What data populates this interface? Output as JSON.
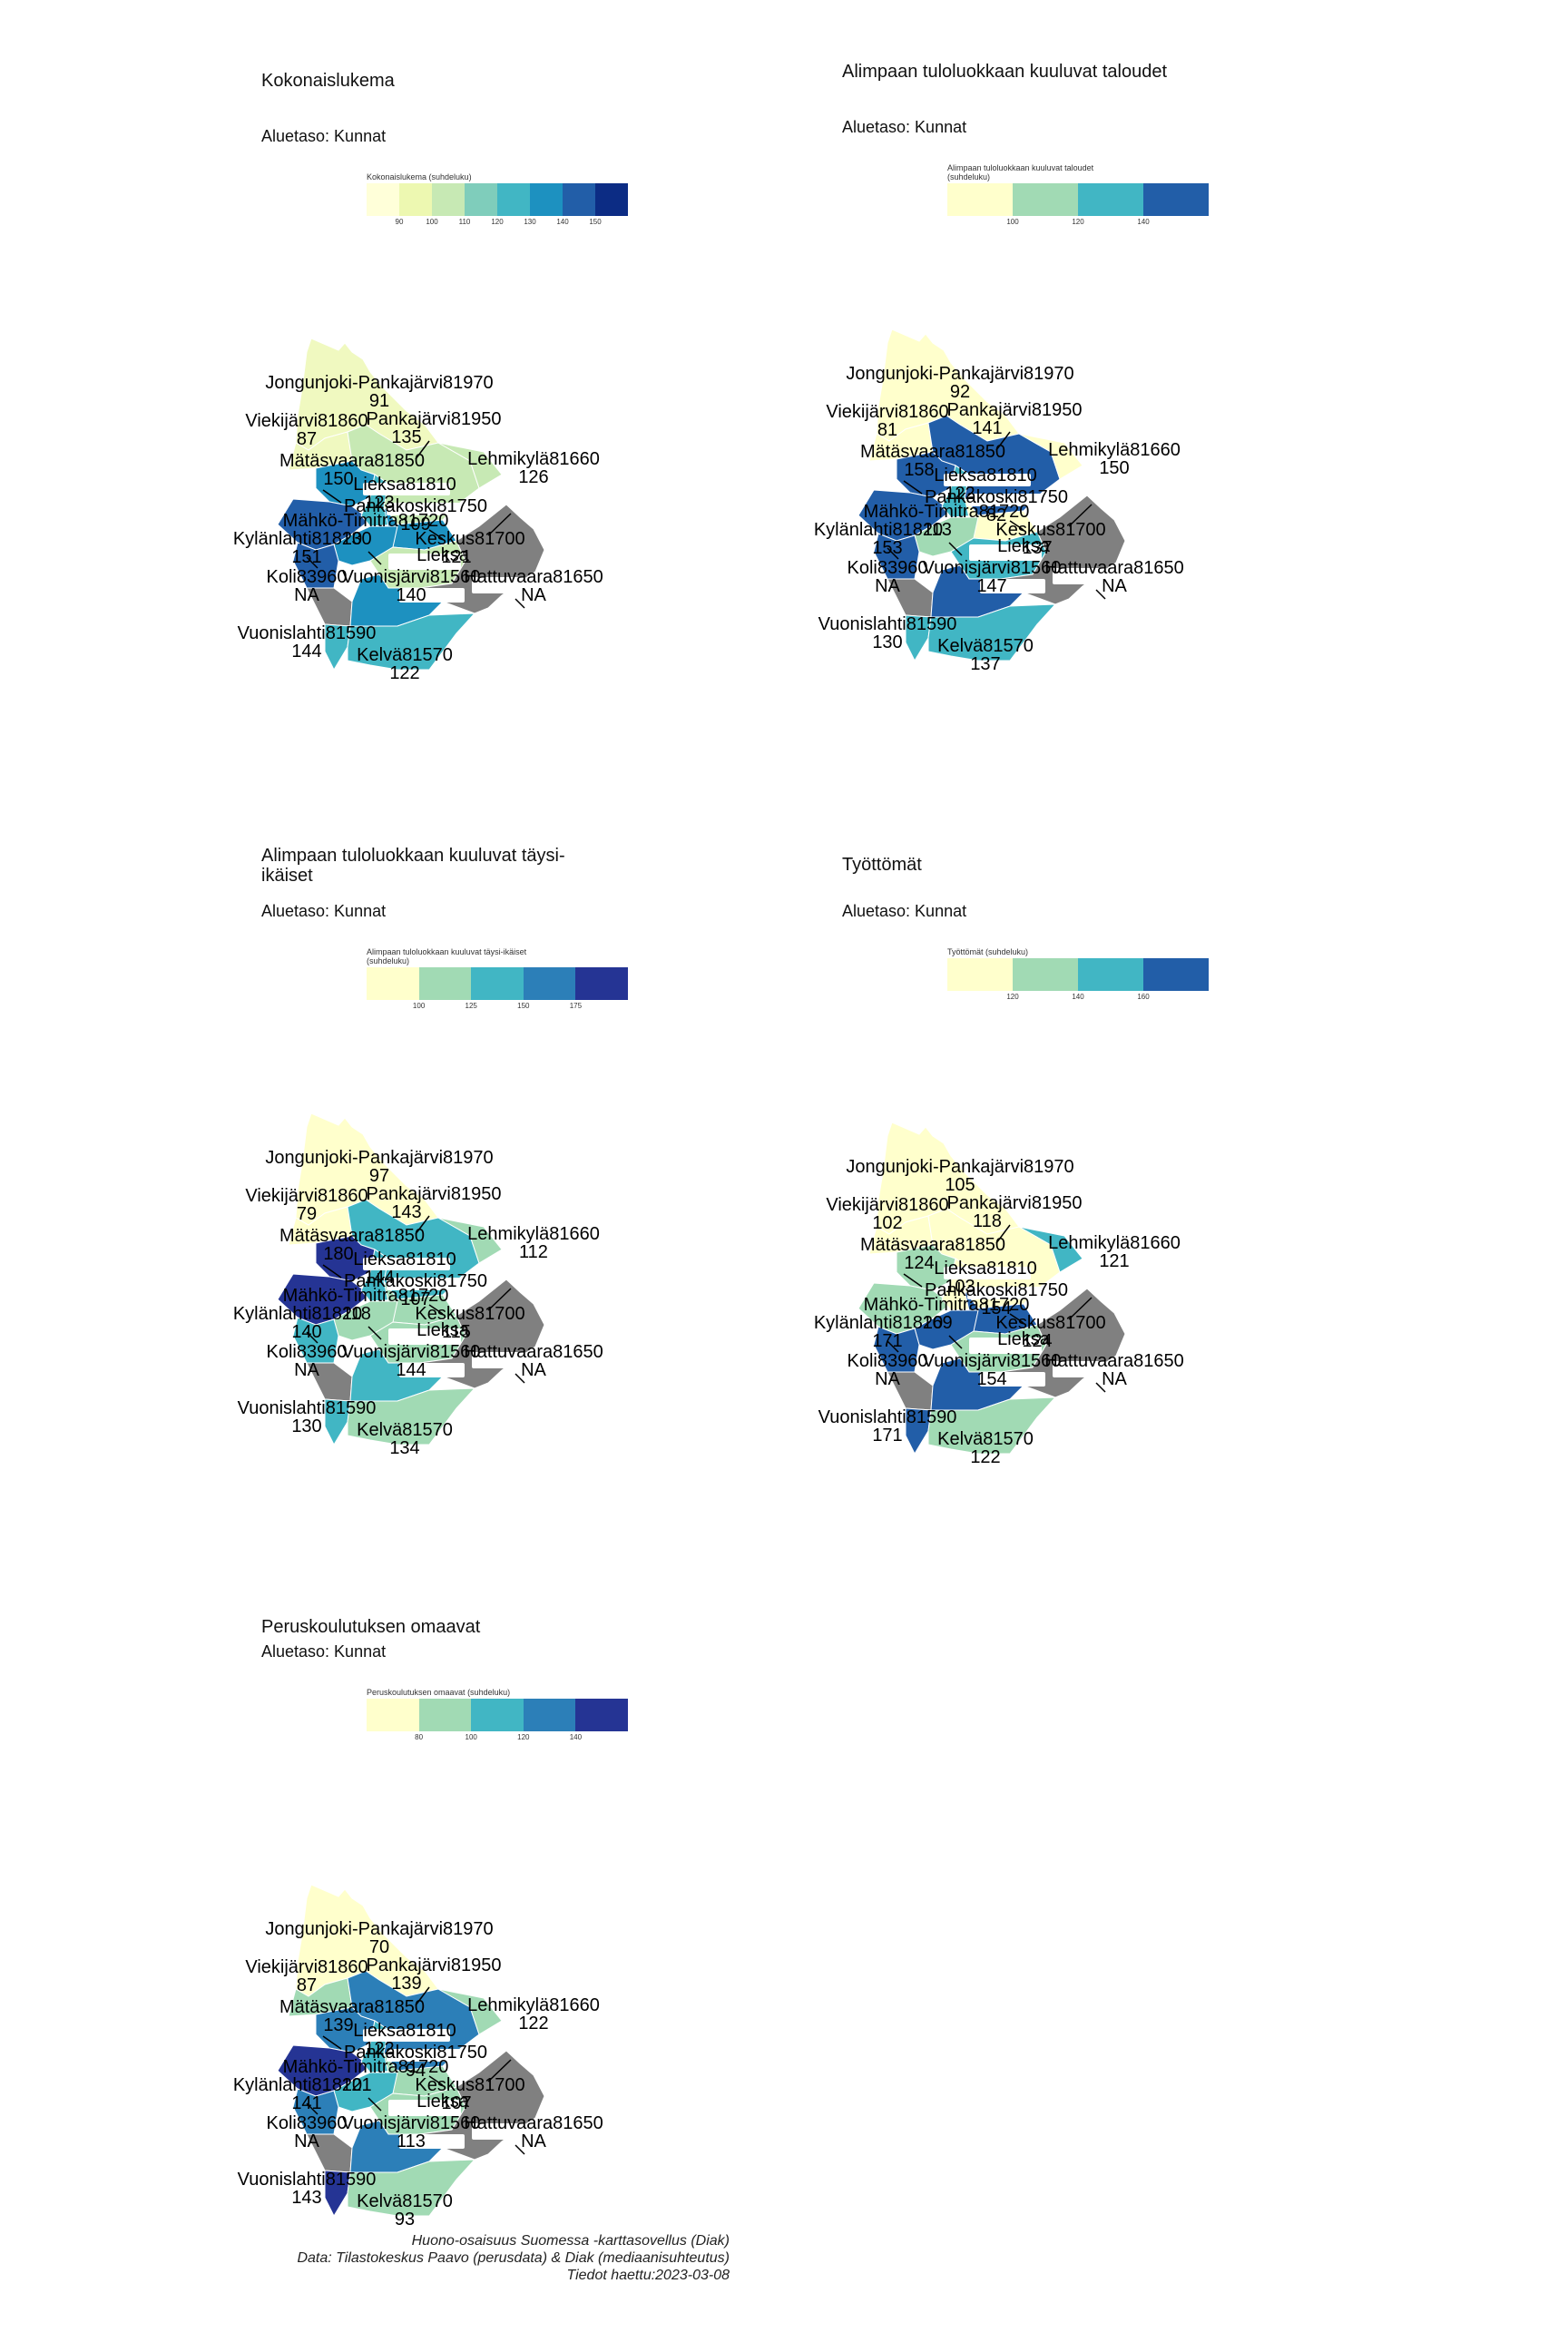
{
  "panels": [
    {
      "title": "Kokonaislukema",
      "subtitle": "Aluetaso: Kunnat",
      "legend_title": "Kokonaislukema (suhdeluku)",
      "legend_colors": [
        "#ffffd9",
        "#edf8b1",
        "#c7e9b4",
        "#7fcdbb",
        "#41b6c4",
        "#1d91c0",
        "#225ea8",
        "#0c2c84"
      ],
      "legend_ticks": [
        "90",
        "100",
        "110",
        "120",
        "130",
        "140",
        "150"
      ],
      "region_colors": {
        "jongunjoki": "#f0f9c0",
        "pankajarvi": "#c7e9b4",
        "viekijarvi": "#f0f9c0",
        "matasvaara": "#1d91c0",
        "west": "#225ea8",
        "lieksa81810": "#41b6c4",
        "lehmikyla": "#c7e9b4",
        "pankakoski": "#1d91c0",
        "mahko": "#1d91c0",
        "kylanlahti": "#225ea8",
        "keskus": "#c7e9b4",
        "vuonisjarvi": "#1d91c0",
        "vuonislahti": "#41b6c4",
        "kelva": "#41b6c4",
        "hattuvaara": "#808080",
        "koli": "#808080"
      },
      "values": {
        "jongunjoki": "91",
        "viekijarvi": "87",
        "pankajarvi": "135",
        "matasvaara": "150",
        "lieksa81810": "123",
        "lehmikyla": "126",
        "pankakoski": "109",
        "mahko": "130",
        "kylanlahti": "151",
        "keskus": "121",
        "koli": "NA",
        "vuonisjarvi": "140",
        "hattuvaara": "NA",
        "vuonislahti": "144",
        "kelva": "122"
      }
    },
    {
      "title": "Alimpaan tuloluokkaan kuuluvat taloudet",
      "subtitle": "Aluetaso: Kunnat",
      "legend_title": "Alimpaan tuloluokkaan kuuluvat taloudet (suhdeluku)",
      "legend_colors": [
        "#ffffcc",
        "#a1dab4",
        "#41b6c4",
        "#225ea8"
      ],
      "legend_ticks": [
        "100",
        "120",
        "140"
      ],
      "region_colors": {
        "jongunjoki": "#ffffcc",
        "pankajarvi": "#225ea8",
        "viekijarvi": "#ffffcc",
        "matasvaara": "#225ea8",
        "west": "#225ea8",
        "lieksa81810": "#41b6c4",
        "lehmikyla": "#ffffcc",
        "pankakoski": "#ffffcc",
        "mahko": "#a1dab4",
        "kylanlahti": "#225ea8",
        "keskus": "#41b6c4",
        "vuonisjarvi": "#225ea8",
        "vuonislahti": "#41b6c4",
        "kelva": "#41b6c4",
        "hattuvaara": "#808080",
        "koli": "#808080"
      },
      "values": {
        "jongunjoki": "92",
        "viekijarvi": "81",
        "pankajarvi": "141",
        "matasvaara": "158",
        "lieksa81810": "122",
        "lehmikyla": "150",
        "pankakoski": "82",
        "mahko": "113",
        "kylanlahti": "153",
        "keskus": "137",
        "koli": "NA",
        "vuonisjarvi": "147",
        "hattuvaara": "NA",
        "vuonislahti": "130",
        "kelva": "137"
      }
    },
    {
      "title": "Alimpaan tuloluokkaan kuuluvat täysi-ikäiset",
      "subtitle": "Aluetaso: Kunnat",
      "legend_title": "Alimpaan tuloluokkaan kuuluvat täysi-ikäiset (suhdeluku)",
      "legend_colors": [
        "#ffffcc",
        "#a1dab4",
        "#41b6c4",
        "#2c7fb8",
        "#253494"
      ],
      "legend_ticks": [
        "100",
        "125",
        "150",
        "175"
      ],
      "region_colors": {
        "jongunjoki": "#ffffcc",
        "pankajarvi": "#41b6c4",
        "viekijarvi": "#ffffcc",
        "matasvaara": "#253494",
        "west": "#253494",
        "lieksa81810": "#41b6c4",
        "lehmikyla": "#a1dab4",
        "pankakoski": "#a1dab4",
        "mahko": "#a1dab4",
        "kylanlahti": "#41b6c4",
        "keskus": "#a1dab4",
        "vuonisjarvi": "#41b6c4",
        "vuonislahti": "#41b6c4",
        "kelva": "#a1dab4",
        "hattuvaara": "#808080",
        "koli": "#808080"
      },
      "values": {
        "jongunjoki": "97",
        "viekijarvi": "79",
        "pankajarvi": "143",
        "matasvaara": "180",
        "lieksa81810": "144",
        "lehmikyla": "112",
        "pankakoski": "107",
        "mahko": "118",
        "kylanlahti": "140",
        "keskus": "115",
        "koli": "NA",
        "vuonisjarvi": "144",
        "hattuvaara": "NA",
        "vuonislahti": "130",
        "kelva": "134"
      }
    },
    {
      "title": "Työttömät",
      "subtitle": "Aluetaso: Kunnat",
      "legend_title": "Työttömät (suhdeluku)",
      "legend_colors": [
        "#ffffcc",
        "#a1dab4",
        "#41b6c4",
        "#225ea8"
      ],
      "legend_ticks": [
        "120",
        "140",
        "160"
      ],
      "region_colors": {
        "jongunjoki": "#ffffcc",
        "pankajarvi": "#ffffcc",
        "viekijarvi": "#ffffcc",
        "matasvaara": "#a1dab4",
        "west": "#a1dab4",
        "lieksa81810": "#ffffcc",
        "lehmikyla": "#41b6c4",
        "pankakoski": "#225ea8",
        "mahko": "#225ea8",
        "kylanlahti": "#225ea8",
        "keskus": "#a1dab4",
        "vuonisjarvi": "#225ea8",
        "vuonislahti": "#225ea8",
        "kelva": "#a1dab4",
        "hattuvaara": "#808080",
        "koli": "#808080"
      },
      "values": {
        "jongunjoki": "105",
        "viekijarvi": "102",
        "pankajarvi": "118",
        "matasvaara": "124",
        "lieksa81810": "103",
        "lehmikyla": "121",
        "pankakoski": "154",
        "mahko": "169",
        "kylanlahti": "171",
        "keskus": "124",
        "koli": "NA",
        "vuonisjarvi": "154",
        "hattuvaara": "NA",
        "vuonislahti": "171",
        "kelva": "122"
      }
    },
    {
      "title": "Peruskoulutuksen omaavat",
      "subtitle": "Aluetaso: Kunnat",
      "legend_title": "Peruskoulutuksen omaavat (suhdeluku)",
      "legend_colors": [
        "#ffffcc",
        "#a1dab4",
        "#41b6c4",
        "#2c7fb8",
        "#253494"
      ],
      "legend_ticks": [
        "80",
        "100",
        "120",
        "140"
      ],
      "region_colors": {
        "jongunjoki": "#ffffcc",
        "pankajarvi": "#2c7fb8",
        "viekijarvi": "#a1dab4",
        "matasvaara": "#2c7fb8",
        "west": "#253494",
        "lieksa81810": "#41b6c4",
        "lehmikyla": "#a1dab4",
        "pankakoski": "#a1dab4",
        "mahko": "#41b6c4",
        "kylanlahti": "#2c7fb8",
        "keskus": "#a1dab4",
        "vuonisjarvi": "#2c7fb8",
        "vuonislahti": "#253494",
        "kelva": "#a1dab4",
        "hattuvaara": "#808080",
        "koli": "#808080"
      },
      "values": {
        "jongunjoki": "70",
        "viekijarvi": "87",
        "pankajarvi": "139",
        "matasvaara": "139",
        "lieksa81810": "122",
        "lehmikyla": "122",
        "pankakoski": "94",
        "mahko": "121",
        "kylanlahti": "141",
        "keskus": "107",
        "koli": "NA",
        "vuonisjarvi": "113",
        "hattuvaara": "NA",
        "vuonislahti": "143",
        "kelva": "93"
      }
    }
  ],
  "area_names": {
    "jongunjoki": "Jongunjoki-Pankajärvi81970",
    "viekijarvi": "Viekijärvi81860",
    "pankajarvi": "Pankajärvi81950",
    "matasvaara": "Mätäsvaara81850",
    "lieksa81810": "Lieksa81810",
    "lehmikyla": "Lehmikylä81660",
    "pankakoski": "Pankakoski81750",
    "mahko": "Mähkö-Timitra81720",
    "kylanlahti": "Kylänlahti81820",
    "keskus": "Keskus81700",
    "koli": "Koli83960",
    "vuonisjarvi": "Vuonisjärvi81560",
    "hattuvaara": "Hattuvaara81650",
    "vuonislahti": "Vuonislahti81590",
    "kelva": "Kelvä81570",
    "lieksa_label": "Lieksa"
  },
  "footer": {
    "line1": "Huono-osaisuus Suomessa -karttasovellus (Diak)",
    "line2": "Data: Tilastokeskus Paavo (perusdata) & Diak (mediaanisuhteutus)",
    "line3": "Tiedot haettu:2023-03-08"
  }
}
